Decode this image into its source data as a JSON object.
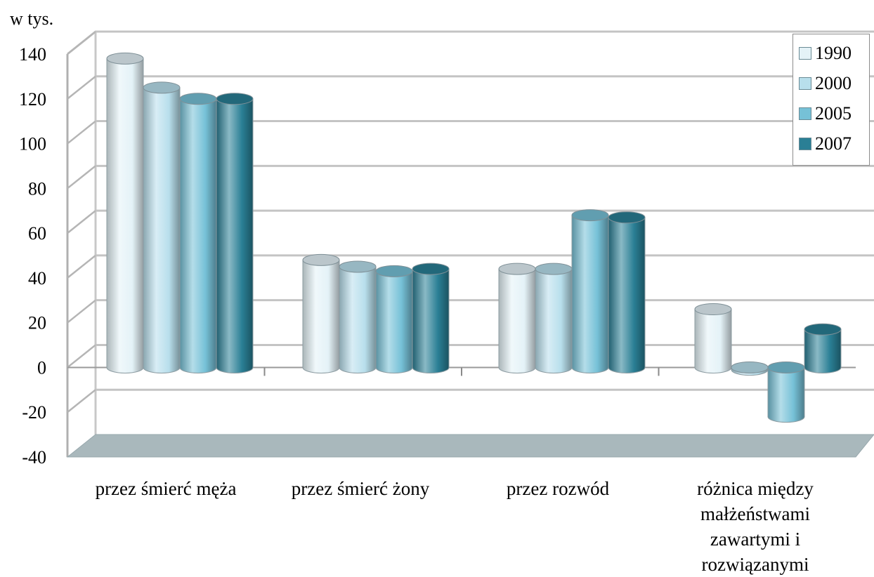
{
  "chart_data": {
    "type": "bar",
    "unit_label": "w tys.",
    "categories": [
      "przez śmierć męża",
      "przez śmierć żony",
      "przez rozwód",
      "różnica między małżeństwami zawartymi i rozwiązanymi"
    ],
    "series": [
      {
        "name": "1990",
        "values": [
          138,
          48,
          44,
          26
        ],
        "color": "#e4f2f7"
      },
      {
        "name": "2000",
        "values": [
          125,
          45,
          44,
          -1
        ],
        "color": "#b8dfec"
      },
      {
        "name": "2005",
        "values": [
          120,
          43,
          68,
          -22
        ],
        "color": "#76c1d7"
      },
      {
        "name": "2007",
        "values": [
          120,
          44,
          67,
          17
        ],
        "color": "#2a7f95"
      }
    ],
    "ylim": [
      -40,
      140
    ],
    "yticks": [
      -40,
      -20,
      0,
      20,
      40,
      60,
      80,
      100,
      120,
      140
    ],
    "legend_position": "top-right",
    "grid": true,
    "style": "3d-cylinder"
  }
}
